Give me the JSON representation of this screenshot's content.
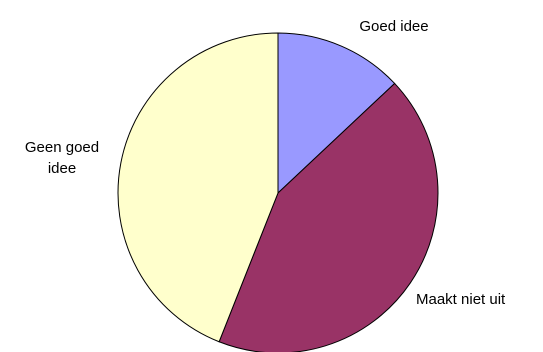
{
  "chart_data": {
    "type": "pie",
    "labels": [
      "Goed idee",
      "Maakt niet uit",
      "Geen goed idee"
    ],
    "values": [
      13,
      43,
      44
    ],
    "colors": [
      "#9999ff",
      "#993366",
      "#ffffcc"
    ],
    "start": "12 o'clock",
    "direction": "clockwise",
    "legend": "none"
  }
}
